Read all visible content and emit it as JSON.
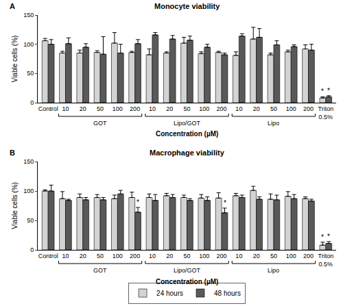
{
  "chart_data": [
    {
      "type": "bar",
      "label": "A",
      "title": "Monocyte viability",
      "x_label": "Concentration (µM)",
      "y_label": "Viable cells (%)",
      "categories": [
        "Control",
        "10",
        "20",
        "50",
        "100",
        "200",
        "10",
        "20",
        "50",
        "100",
        "200",
        "10",
        "20",
        "50",
        "100",
        "200",
        "Triton 0.5%"
      ],
      "series": [
        {
          "name": "24 hours",
          "color": "#d3d3d3",
          "values": [
            106,
            85,
            85,
            86,
            102,
            86,
            82,
            85,
            102,
            84,
            86,
            81,
            109,
            82,
            87,
            92,
            8
          ],
          "errors": [
            4,
            3,
            5,
            3,
            18,
            2,
            10,
            2,
            10,
            3,
            2,
            6,
            20,
            3,
            3,
            7,
            2
          ]
        },
        {
          "name": "48 hours",
          "color": "#595959",
          "values": [
            100,
            101,
            95,
            83,
            85,
            101,
            116,
            109,
            107,
            95,
            82,
            114,
            112,
            99,
            96,
            90,
            10
          ],
          "errors": [
            8,
            10,
            6,
            30,
            15,
            7,
            4,
            6,
            7,
            5,
            3,
            4,
            15,
            7,
            3,
            10,
            2
          ]
        }
      ],
      "groups": [
        {
          "label": "GOT",
          "from": 1,
          "to": 5
        },
        {
          "label": "Lipo/GOT",
          "from": 6,
          "to": 10
        },
        {
          "label": "Lipo",
          "from": 11,
          "to": 15
        }
      ],
      "annotations": [
        {
          "text": "*",
          "x": 16,
          "series": "24 hours"
        },
        {
          "text": "*",
          "x": 16,
          "series": "48 hours"
        }
      ],
      "ylim": [
        0,
        150
      ],
      "yticks": [
        0,
        50,
        100,
        150
      ],
      "grid": false
    },
    {
      "type": "bar",
      "label": "B",
      "title": "Macrophage viability",
      "x_label": "Concentration (µM)",
      "y_label": "Viable cells (%)",
      "categories": [
        "Control",
        "10",
        "20",
        "50",
        "100",
        "200",
        "10",
        "20",
        "50",
        "100",
        "200",
        "10",
        "20",
        "50",
        "100",
        "200",
        "Triton 0.5%"
      ],
      "series": [
        {
          "name": "24 hours",
          "color": "#d3d3d3",
          "values": [
            100,
            87,
            89,
            89,
            87,
            89,
            89,
            92,
            89,
            88,
            88,
            92,
            101,
            86,
            91,
            87,
            8
          ],
          "errors": [
            2,
            12,
            6,
            5,
            6,
            9,
            6,
            4,
            4,
            6,
            9,
            4,
            7,
            9,
            8,
            3,
            5
          ]
        },
        {
          "name": "48 hours",
          "color": "#595959",
          "values": [
            100,
            84,
            85,
            85,
            95,
            64,
            84,
            89,
            84,
            84,
            63,
            89,
            86,
            85,
            87,
            83,
            11
          ],
          "errors": [
            10,
            2,
            4,
            4,
            6,
            8,
            10,
            5,
            3,
            6,
            8,
            4,
            4,
            8,
            7,
            3,
            3
          ]
        }
      ],
      "groups": [
        {
          "label": "GOT",
          "from": 1,
          "to": 5
        },
        {
          "label": "Lipo/GOT",
          "from": 6,
          "to": 10
        },
        {
          "label": "Lipo",
          "from": 11,
          "to": 15
        }
      ],
      "annotations": [
        {
          "text": "*",
          "x": 5,
          "series": "48 hours"
        },
        {
          "text": "*",
          "x": 10,
          "series": "48 hours"
        },
        {
          "text": "*",
          "x": 16,
          "series": "24 hours"
        },
        {
          "text": "*",
          "x": 16,
          "series": "48 hours"
        }
      ],
      "ylim": [
        0,
        150
      ],
      "yticks": [
        0,
        50,
        100,
        150
      ],
      "grid": false,
      "legend": "bottom"
    }
  ]
}
